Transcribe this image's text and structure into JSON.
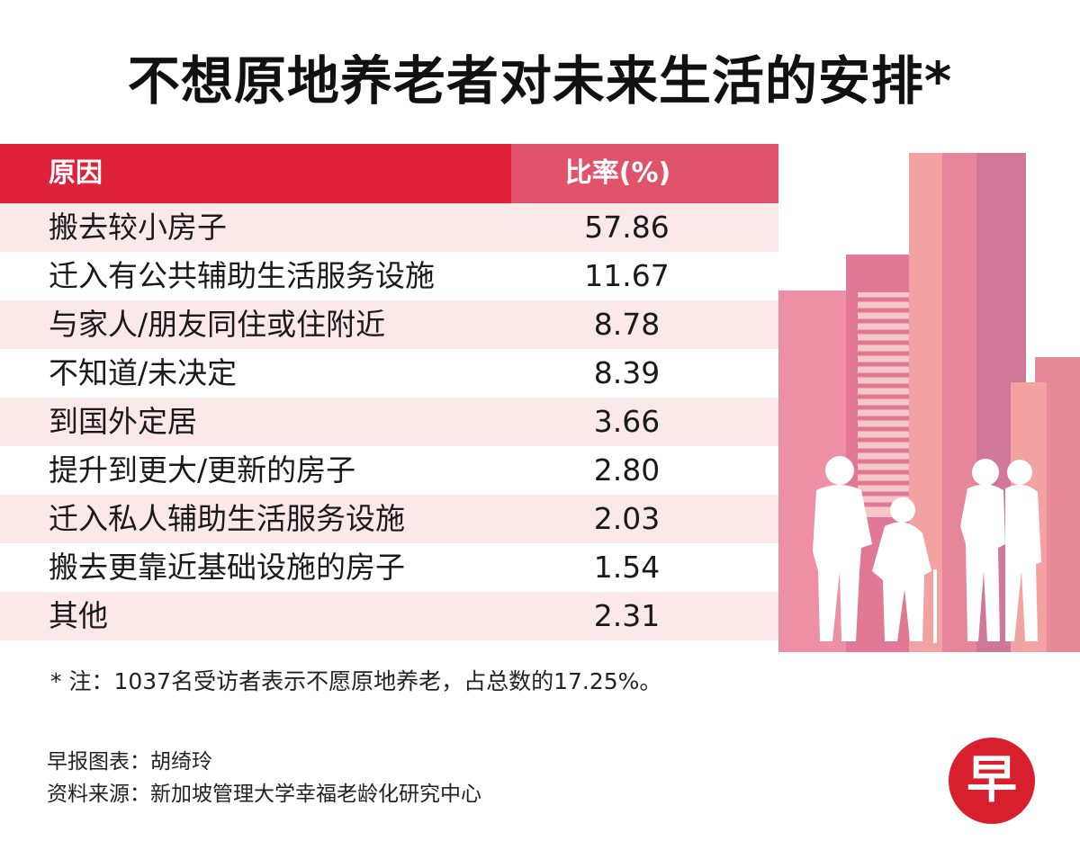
{
  "title": "不想原地养老者对未来生活的安排*",
  "chart_data": {
    "type": "table",
    "headers": [
      "原因",
      "比率(%)"
    ],
    "rows": [
      {
        "reason": "搬去较小房子",
        "value": "57.86"
      },
      {
        "reason": "迁入有公共辅助生活服务设施",
        "value": "11.67"
      },
      {
        "reason": "与家人/朋友同住或住附近",
        "value": "8.78"
      },
      {
        "reason": "不知道/未决定",
        "value": "8.39"
      },
      {
        "reason": "到国外定居",
        "value": "3.66"
      },
      {
        "reason": "提升到更大/更新的房子",
        "value": "2.80"
      },
      {
        "reason": "迁入私人辅助生活服务设施",
        "value": "2.03"
      },
      {
        "reason": "搬去更靠近基础设施的房子",
        "value": "1.54"
      },
      {
        "reason": "其他",
        "value": "2.31"
      }
    ]
  },
  "note": "* 注：1037名受访者表示不愿原地养老，占总数的17.25%。",
  "credits": {
    "graphic": "早报图表：胡绮玲",
    "source": "资料来源：新加坡管理大学幸福老龄化研究中心"
  },
  "logo_char": "早",
  "colors": {
    "header_red": "#e0213a",
    "header_pink": "#e1536b",
    "row_pink": "#fbe8e8",
    "logo_red": "#d71f2e"
  }
}
